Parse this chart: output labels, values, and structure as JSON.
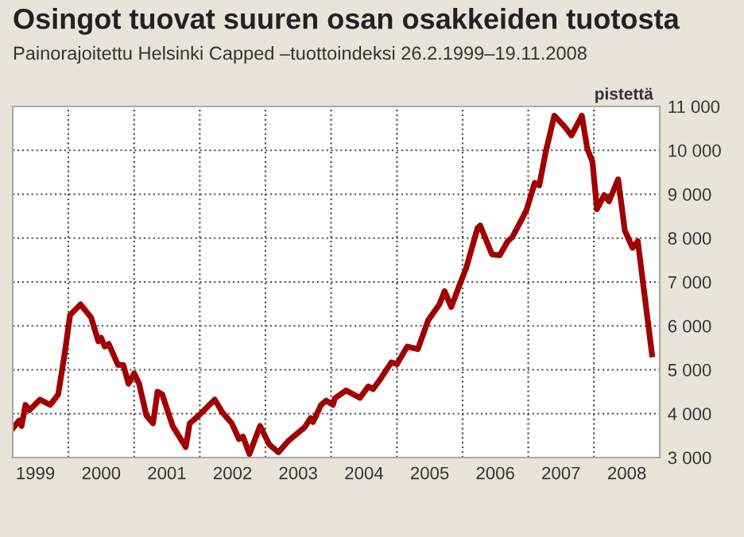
{
  "chart_data": {
    "type": "line",
    "title": "Osingot tuovat suuren osan osakkeiden tuotosta",
    "subtitle": "Painorajoitettu Helsinki Capped –tuottoindeksi 26.2.1999–19.11.2008",
    "ylabel": "pistettä",
    "x": [
      "1999-02-26",
      "1999-04-01",
      "1999-04-16",
      "1999-05-08",
      "1999-05-30",
      "1999-07-27",
      "1999-09-23",
      "1999-11-06",
      "1999-12-13",
      "2000-01-11",
      "2000-03-09",
      "2000-05-07",
      "2000-06-16",
      "2000-07-01",
      "2000-07-22",
      "2000-08-13",
      "2000-10-03",
      "2000-11-02",
      "2000-12-01",
      "2001-01-01",
      "2001-01-29",
      "2001-03-10",
      "2001-04-16",
      "2001-05-11",
      "2001-06-06",
      "2001-08-03",
      "2001-10-15",
      "2001-11-06",
      "2001-12-27",
      "2002-03-25",
      "2002-05-08",
      "2002-06-28",
      "2002-08-07",
      "2002-08-29",
      "2002-10-04",
      "2002-12-02",
      "2003-01-22",
      "2003-03-14",
      "2003-05-11",
      "2003-08-07",
      "2003-09-09",
      "2003-09-23",
      "2003-11-06",
      "2003-12-05",
      "2004-01-11",
      "2004-01-22",
      "2004-03-24",
      "2004-06-09",
      "2004-07-26",
      "2004-08-21",
      "2004-10-03",
      "2004-12-01",
      "2005-01-01",
      "2005-02-27",
      "2005-04-27",
      "2005-06-24",
      "2005-08-25",
      "2005-09-23",
      "2005-10-30",
      "2005-12-13",
      "2006-01-22",
      "2006-03-25",
      "2006-04-09",
      "2006-06-13",
      "2006-07-27",
      "2006-09-09",
      "2006-10-04",
      "2006-11-25",
      "2006-12-24",
      "2007-02-06",
      "2007-03-03",
      "2007-04-09",
      "2007-05-26",
      "2007-07-20",
      "2007-08-29",
      "2007-10-26",
      "2007-11-25",
      "2007-12-24",
      "2008-01-18",
      "2008-02-27",
      "2008-03-25",
      "2008-05-15",
      "2008-06-21",
      "2008-08-03",
      "2008-09-01",
      "2008-11-19"
    ],
    "series": [
      {
        "color": "#a00000",
        "values": [
          3660,
          3840,
          3720,
          4200,
          4080,
          4320,
          4200,
          4440,
          5400,
          6250,
          6490,
          6190,
          5650,
          5730,
          5530,
          5590,
          5110,
          5110,
          4680,
          4920,
          4680,
          3960,
          3780,
          4500,
          4440,
          3720,
          3240,
          3780,
          3960,
          4320,
          4020,
          3780,
          3420,
          3480,
          3080,
          3720,
          3300,
          3120,
          3390,
          3690,
          3900,
          3810,
          4200,
          4300,
          4200,
          4350,
          4530,
          4360,
          4620,
          4560,
          4800,
          5170,
          5130,
          5530,
          5470,
          6130,
          6490,
          6790,
          6430,
          6910,
          7330,
          8230,
          8290,
          7630,
          7610,
          7930,
          8020,
          8420,
          8660,
          9260,
          9200,
          9980,
          10790,
          10550,
          10340,
          10790,
          10040,
          9740,
          8660,
          8980,
          8840,
          9340,
          8170,
          7780,
          7930,
          5350
        ]
      }
    ],
    "xlim": [
      "1999-02-26",
      "2009-01-01"
    ],
    "xticks": [
      {
        "value": "1999-07-02",
        "label": "1999"
      },
      {
        "value": "2000-01-01",
        "label": null
      },
      {
        "value": "2000-07-02",
        "label": "2000"
      },
      {
        "value": "2001-01-01",
        "label": null
      },
      {
        "value": "2001-07-02",
        "label": "2001"
      },
      {
        "value": "2002-01-01",
        "label": null
      },
      {
        "value": "2002-07-02",
        "label": "2002"
      },
      {
        "value": "2003-01-01",
        "label": null
      },
      {
        "value": "2003-07-02",
        "label": "2003"
      },
      {
        "value": "2004-01-01",
        "label": null
      },
      {
        "value": "2004-07-02",
        "label": "2004"
      },
      {
        "value": "2005-01-01",
        "label": null
      },
      {
        "value": "2005-07-02",
        "label": "2005"
      },
      {
        "value": "2006-01-01",
        "label": null
      },
      {
        "value": "2006-07-02",
        "label": "2006"
      },
      {
        "value": "2007-01-01",
        "label": null
      },
      {
        "value": "2007-07-02",
        "label": "2007"
      },
      {
        "value": "2008-01-01",
        "label": null
      },
      {
        "value": "2008-07-02",
        "label": "2008"
      }
    ],
    "ylim": [
      3000,
      11000
    ],
    "yticks": [
      {
        "value": 3000,
        "label": "3 000"
      },
      {
        "value": 4000,
        "label": "4 000"
      },
      {
        "value": 5000,
        "label": "5 000"
      },
      {
        "value": 6000,
        "label": "6 000"
      },
      {
        "value": 7000,
        "label": "7 000"
      },
      {
        "value": 8000,
        "label": "8 000"
      },
      {
        "value": 9000,
        "label": "9 000"
      },
      {
        "value": 10000,
        "label": "10 000"
      },
      {
        "value": 11000,
        "label": "11 000"
      }
    ],
    "grid": true,
    "line_style": "solid"
  }
}
